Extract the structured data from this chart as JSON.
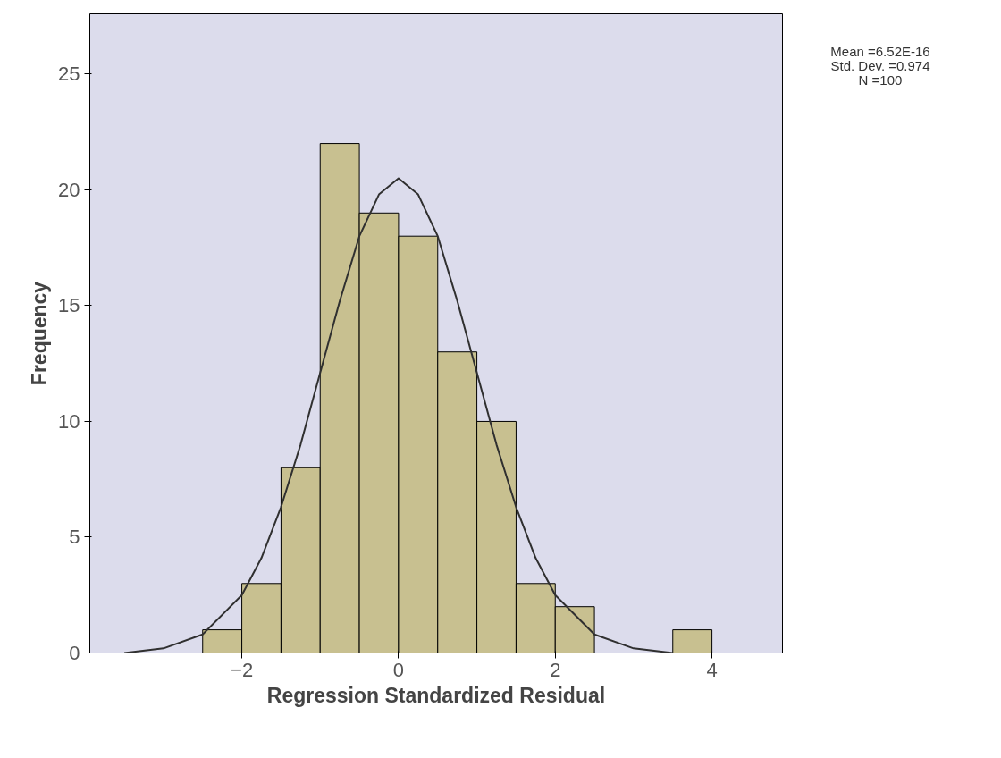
{
  "chart_data": {
    "type": "histogram",
    "xlabel": "Regression Standardized Residual",
    "ylabel": "Frequency",
    "bins": [
      -2.5,
      -2.0,
      -1.5,
      -1.0,
      -0.5,
      0.0,
      0.5,
      1.0,
      1.5,
      2.0,
      2.5,
      3.0,
      3.5,
      4.0
    ],
    "values": [
      1,
      3,
      8,
      22,
      19,
      18,
      13,
      10,
      3,
      2,
      0,
      0,
      1
    ],
    "color": "#c8c090",
    "series": [
      {
        "type": "line",
        "color": "#303030",
        "x": [
          -3.5,
          -3.0,
          -2.5,
          -2.0,
          -1.75,
          -1.5,
          -1.25,
          -1.0,
          -0.75,
          -0.5,
          -0.25,
          0.0,
          0.25,
          0.5,
          0.75,
          1.0,
          1.25,
          1.5,
          1.75,
          2.0,
          2.5,
          3.0,
          3.5
        ],
        "values": [
          0.0,
          0.2,
          0.8,
          2.5,
          4.1,
          6.3,
          9.0,
          12.1,
          15.2,
          18.0,
          19.8,
          20.5,
          19.8,
          18.0,
          15.2,
          12.1,
          9.0,
          6.3,
          4.1,
          2.5,
          0.8,
          0.2,
          0.0
        ]
      }
    ],
    "xlim": [
      -3.94,
      4.9
    ],
    "ylim": [
      0,
      27.6
    ],
    "xticks": [
      -2,
      0,
      2,
      4
    ],
    "yticks": [
      0,
      5,
      10,
      15,
      20,
      25
    ],
    "grid": false,
    "annotations": [
      "Mean =6.52E-16",
      "Std. Dev. =0.974",
      "N =100"
    ]
  }
}
